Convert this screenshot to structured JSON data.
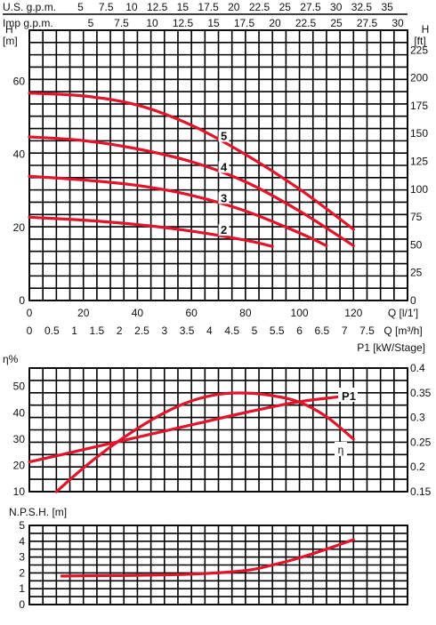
{
  "chart_data": [
    {
      "id": "head",
      "type": "line",
      "top_axis_1": {
        "label": "U.S. g.p.m.",
        "ticks": [
          "5",
          "7.5",
          "10",
          "12.5",
          "15",
          "17.5",
          "20",
          "22.5",
          "25",
          "27.5",
          "30",
          "32.5",
          "35"
        ],
        "tick_values": [
          5,
          7.5,
          10,
          12.5,
          15,
          17.5,
          20,
          22.5,
          25,
          27.5,
          30,
          32.5,
          35
        ]
      },
      "top_axis_2": {
        "label": "Imp g.p.m.",
        "ticks": [
          "5",
          "7.5",
          "10",
          "12.5",
          "15",
          "17.5",
          "20",
          "22.5",
          "25",
          "27.5",
          "30"
        ],
        "tick_values": [
          5,
          7.5,
          10,
          12.5,
          15,
          17.5,
          20,
          22.5,
          25,
          27.5,
          30
        ]
      },
      "ylabel_left": "H",
      "ylabel_left_unit": "[m]",
      "ylabel_right": "H",
      "ylabel_right_unit": "[ft]",
      "ylim": [
        0,
        74
      ],
      "yticks_left": [
        0,
        20,
        40,
        60
      ],
      "yticks_right": [
        "0",
        "25",
        "50",
        "75",
        "100",
        "125",
        "150",
        "175",
        "200",
        "225"
      ],
      "xlabel_1": "Q [l/1']",
      "xlim": [
        0,
        140
      ],
      "xticks_1": [
        0,
        20,
        40,
        60,
        80,
        100,
        120
      ],
      "xlabel_2": "Q [m³/h]",
      "xticks_2": [
        "0",
        "0.5",
        "1",
        "1.5",
        "2",
        "2.5",
        "3",
        "3.5",
        "4",
        "4.5",
        "5",
        "5.5",
        "6",
        "6.5",
        "7",
        "7.5"
      ],
      "series": [
        {
          "name": "5",
          "color": "#e0142a",
          "x": [
            0,
            20,
            40,
            60,
            80,
            100,
            120
          ],
          "y": [
            56.8,
            56.0,
            53.5,
            48.0,
            40.0,
            30.5,
            19.5
          ]
        },
        {
          "name": "4",
          "color": "#e0142a",
          "x": [
            0,
            20,
            40,
            60,
            80,
            100,
            120
          ],
          "y": [
            44.8,
            43.8,
            41.5,
            38.0,
            32.5,
            24.5,
            15.0
          ]
        },
        {
          "name": "3",
          "color": "#e0142a",
          "x": [
            0,
            20,
            40,
            60,
            80,
            100,
            110
          ],
          "y": [
            34.0,
            33.0,
            31.5,
            28.8,
            24.5,
            18.5,
            15.0
          ]
        },
        {
          "name": "2",
          "color": "#e0142a",
          "x": [
            0,
            20,
            40,
            60,
            80,
            90
          ],
          "y": [
            22.8,
            22.0,
            20.8,
            19.0,
            16.5,
            14.8
          ]
        }
      ]
    },
    {
      "id": "efficiency",
      "type": "line",
      "ylabel_left": "η%",
      "ylim": [
        10,
        57
      ],
      "yticks_left": [
        10,
        20,
        30,
        40,
        50
      ],
      "ylabel_right": "P1 [kW/Stage]",
      "ylim_right": [
        0.15,
        0.4
      ],
      "yticks_right": [
        "0.15",
        "0.2",
        "0.25",
        "0.3",
        "0.35",
        "0.4"
      ],
      "xlim": [
        0,
        140
      ],
      "series": [
        {
          "name": "η",
          "color": "#e0142a",
          "axis": "left",
          "x": [
            10,
            20,
            30,
            40,
            50,
            60,
            70,
            80,
            90,
            100,
            110,
            120
          ],
          "y": [
            10.0,
            19.0,
            27.0,
            34.0,
            40.0,
            44.5,
            47.0,
            47.5,
            46.5,
            44.0,
            38.5,
            30.0
          ]
        },
        {
          "name": "P1",
          "color": "#e0142a",
          "axis": "right",
          "x": [
            0,
            20,
            40,
            60,
            80,
            100,
            120
          ],
          "y": [
            0.21,
            0.235,
            0.26,
            0.285,
            0.31,
            0.332,
            0.345
          ]
        }
      ]
    },
    {
      "id": "npsh",
      "type": "line",
      "ylabel_left": "N.P.S.H. [m]",
      "ylim": [
        0,
        5
      ],
      "yticks_left": [
        0,
        1,
        2,
        3,
        4,
        5
      ],
      "xlim": [
        0,
        140
      ],
      "series": [
        {
          "name": "NPSH",
          "color": "#e0142a",
          "x": [
            12,
            20,
            40,
            60,
            80,
            90,
            100,
            110,
            120
          ],
          "y": [
            1.8,
            1.82,
            1.85,
            1.92,
            2.15,
            2.5,
            2.95,
            3.5,
            4.1
          ]
        }
      ]
    }
  ]
}
